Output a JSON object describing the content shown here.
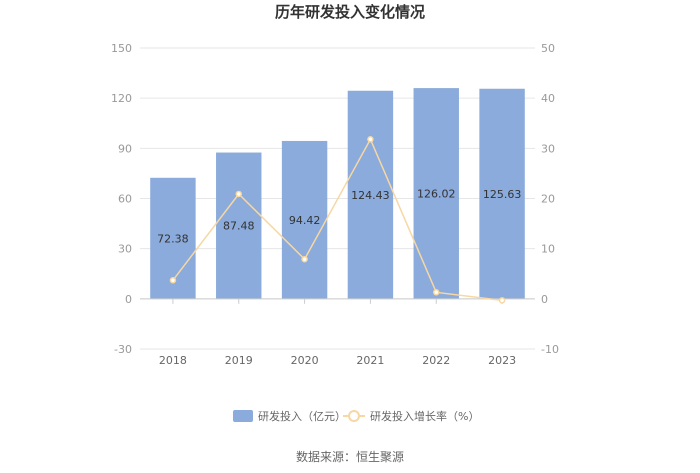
{
  "chart_data": {
    "type": "bar",
    "title": "历年研发投入变化情况",
    "categories": [
      "2018",
      "2019",
      "2020",
      "2021",
      "2022",
      "2023"
    ],
    "series": [
      {
        "name": "研发投入（亿元）",
        "type": "bar",
        "axis": "left",
        "color": "#8aabdb",
        "values": [
          72.38,
          87.48,
          94.42,
          124.43,
          126.02,
          125.63
        ],
        "labels": [
          "72.38",
          "87.48",
          "94.42",
          "124.43",
          "126.02",
          "125.63"
        ]
      },
      {
        "name": "研发投入增长率（%）",
        "type": "line",
        "axis": "right",
        "color": "#f7d7a3",
        "values": [
          3.7,
          20.9,
          7.9,
          31.8,
          1.3,
          -0.3
        ]
      }
    ],
    "y_left": {
      "min": -30,
      "max": 150,
      "ticks": [
        "150",
        "120",
        "90",
        "60",
        "30",
        "0",
        "-30"
      ]
    },
    "y_right": {
      "min": -10,
      "max": 50,
      "ticks": [
        "50",
        "40",
        "30",
        "20",
        "10",
        "0",
        "-10"
      ]
    },
    "grid": true,
    "legend_position": "bottom"
  },
  "source": "数据来源：恒生聚源"
}
